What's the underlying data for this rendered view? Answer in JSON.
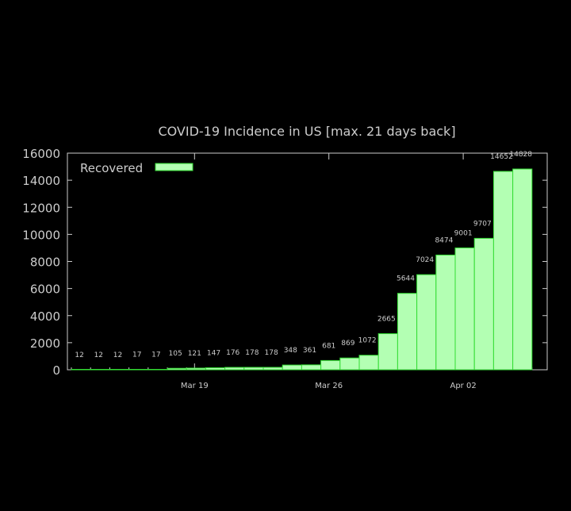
{
  "chart_data": {
    "type": "bar",
    "title": "COVID-19 Incidence in US [max. 21 days back]",
    "xlabel": "",
    "ylabel": "",
    "ylim": [
      0,
      16000
    ],
    "yticks": [
      "0",
      "2000",
      "4000",
      "6000",
      "8000",
      "10000",
      "12000",
      "14000",
      "16000"
    ],
    "xtick_labels": [
      {
        "label": "Mar 19",
        "index": 6
      },
      {
        "label": "Mar 26",
        "index": 13
      },
      {
        "label": "Apr 02",
        "index": 20
      }
    ],
    "grid": false,
    "legend_position": "top-left",
    "series": [
      {
        "name": "Recovered",
        "color": "#b3ffb3",
        "edge_color": "#33dd33",
        "values": [
          12,
          12,
          12,
          17,
          17,
          105,
          121,
          147,
          176,
          178,
          178,
          348,
          361,
          681,
          869,
          1072,
          2665,
          5644,
          7024,
          8474,
          9001,
          9707,
          14652,
          14828
        ],
        "labels": [
          "12",
          "12",
          "12",
          "17",
          "17",
          "105",
          "121",
          "147",
          "176",
          "178",
          "178",
          "348",
          "361",
          "681",
          "869",
          "1072",
          "2665",
          "5644",
          "7024",
          "8474",
          "9001",
          "9707",
          "14652",
          "14828"
        ]
      }
    ],
    "colors": {
      "background": "#000000",
      "text": "#cccccc",
      "axis": "#cccccc"
    }
  }
}
